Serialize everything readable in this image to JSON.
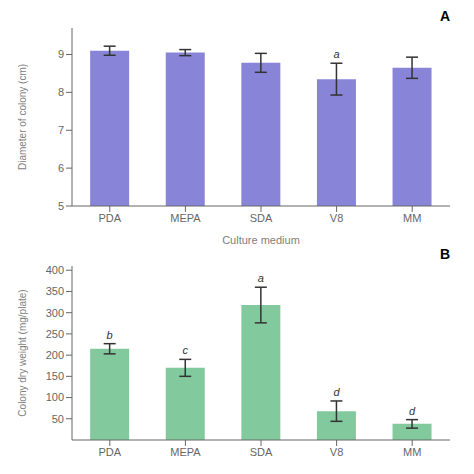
{
  "chart_data": [
    {
      "type": "bar",
      "title": "A",
      "categories": [
        "PDA",
        "MEPA",
        "SDA",
        "V8",
        "MM"
      ],
      "values": [
        9.1,
        9.05,
        8.78,
        8.35,
        8.65
      ],
      "errors": [
        0.12,
        0.08,
        0.25,
        0.42,
        0.28
      ],
      "annotations": [
        {
          "x": "V8",
          "text": "a"
        }
      ],
      "xlabel": "Culture medium",
      "ylabel": "Diameter of colony (cm)",
      "ylim": [
        5,
        9.7
      ],
      "yticks": [
        5,
        6,
        7,
        8,
        9
      ],
      "color": "#8884d8",
      "grid": false
    },
    {
      "type": "bar",
      "title": "B",
      "categories": [
        "PDA",
        "MEPA",
        "SDA",
        "V8",
        "MM"
      ],
      "values": [
        215,
        170,
        318,
        68,
        38
      ],
      "errors": [
        12,
        20,
        42,
        24,
        10
      ],
      "annotations": [
        {
          "x": "PDA",
          "text": "b"
        },
        {
          "x": "MEPA",
          "text": "c"
        },
        {
          "x": "SDA",
          "text": "a"
        },
        {
          "x": "V8",
          "text": "d"
        },
        {
          "x": "MM",
          "text": "d"
        }
      ],
      "ylabel": "Colony dry weight (mg/plate)",
      "ylim": [
        0,
        410
      ],
      "yticks": [
        50,
        100,
        150,
        200,
        250,
        300,
        350,
        400
      ],
      "color": "#82ca9d",
      "grid": false
    }
  ]
}
